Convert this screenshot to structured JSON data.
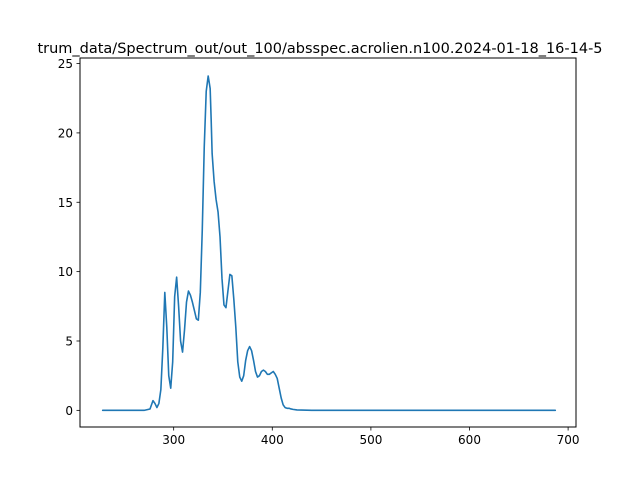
{
  "chart_data": {
    "type": "line",
    "title": "...trum_data/Spectrum_out/out_100/absspec.acrolien.n100.2024-01-18_16-14-5...",
    "title_visible_text": "trum_data/Spectrum_out/out_100/absspec.acrolien.n100.2024-01-18_16-14-5",
    "xlabel": "",
    "ylabel": "",
    "xlim": [
      205,
      708
    ],
    "ylim": [
      -1.2,
      25.4
    ],
    "x_ticks": [
      300,
      400,
      500,
      600,
      700
    ],
    "y_ticks": [
      0,
      5,
      10,
      15,
      20,
      25
    ],
    "x_tick_labels": [
      "300",
      "400",
      "500",
      "600",
      "700"
    ],
    "y_tick_labels": [
      "0",
      "5",
      "10",
      "15",
      "20",
      "25"
    ],
    "grid": false,
    "legend": "none",
    "colors": {
      "line": "#1f77b4",
      "axes": "#000000",
      "background": "#ffffff"
    },
    "series": [
      {
        "x": [
          228,
          250,
          270,
          276,
          279,
          281,
          283,
          285,
          287,
          289,
          291,
          293,
          295,
          297,
          299,
          301,
          303,
          305,
          307,
          309,
          311,
          313,
          315,
          317,
          319,
          321,
          323,
          325,
          327,
          329,
          331,
          333,
          335,
          337,
          338,
          339,
          341,
          343,
          345,
          347,
          349,
          351,
          353,
          355,
          357,
          359,
          361,
          363,
          365,
          367,
          369,
          371,
          373,
          375,
          377,
          379,
          381,
          383,
          385,
          387,
          389,
          391,
          393,
          395,
          397,
          399,
          401,
          403,
          405,
          407,
          409,
          411,
          413,
          415,
          417,
          419,
          421,
          425,
          430,
          435,
          440,
          450,
          500,
          550,
          600,
          650,
          687
        ],
        "y": [
          0,
          0,
          0,
          0.1,
          0.7,
          0.5,
          0.2,
          0.5,
          1.5,
          4.5,
          8.5,
          6,
          2.5,
          1.6,
          3.5,
          8.2,
          9.6,
          7.5,
          5,
          4.2,
          5.8,
          7.8,
          8.6,
          8.3,
          7.8,
          7.2,
          6.6,
          6.5,
          8.5,
          13,
          19,
          23,
          24.1,
          23.2,
          21,
          18.5,
          16.5,
          15.2,
          14.3,
          12.5,
          9.5,
          7.6,
          7.4,
          8.6,
          9.8,
          9.7,
          8,
          6,
          3.5,
          2.4,
          2.1,
          2.5,
          3.6,
          4.3,
          4.6,
          4.3,
          3.6,
          2.8,
          2.4,
          2.5,
          2.8,
          2.9,
          2.8,
          2.6,
          2.6,
          2.7,
          2.8,
          2.6,
          2.3,
          1.6,
          0.9,
          0.4,
          0.2,
          0.15,
          0.15,
          0.1,
          0.07,
          0.03,
          0.02,
          0.01,
          0,
          0,
          0,
          0,
          0,
          0,
          0
        ]
      }
    ]
  }
}
